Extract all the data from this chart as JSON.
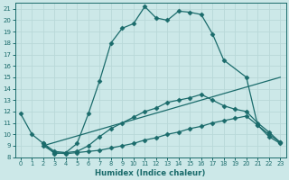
{
  "xlabel": "Humidex (Indice chaleur)",
  "xlim": [
    -0.5,
    23.5
  ],
  "ylim": [
    8,
    21.5
  ],
  "yticks": [
    8,
    9,
    10,
    11,
    12,
    13,
    14,
    15,
    16,
    17,
    18,
    19,
    20,
    21
  ],
  "xticks": [
    0,
    1,
    2,
    3,
    4,
    5,
    6,
    7,
    8,
    9,
    10,
    11,
    12,
    13,
    14,
    15,
    16,
    17,
    18,
    19,
    20,
    21,
    22,
    23
  ],
  "bg_color": "#cce8e8",
  "line_color": "#1a6b6b",
  "grid_color": "#b8d8d8",
  "curve1_x": [
    0,
    1,
    2,
    3,
    4,
    5,
    6,
    7,
    8,
    9,
    10,
    11,
    12,
    13,
    14,
    15,
    16,
    17,
    18,
    20,
    21,
    22,
    23
  ],
  "curve1_y": [
    11.8,
    10.0,
    9.2,
    8.3,
    8.4,
    9.2,
    11.8,
    14.7,
    18.0,
    19.3,
    19.7,
    21.2,
    20.2,
    20.0,
    20.8,
    20.7,
    20.5,
    18.8,
    16.5,
    15.0,
    10.8,
    10.0,
    9.3
  ],
  "curve2_x": [
    2,
    3,
    4,
    5,
    6,
    7,
    8,
    9,
    10,
    11,
    12,
    13,
    14,
    15,
    16,
    17,
    18,
    19,
    20,
    21,
    22,
    23
  ],
  "curve2_y": [
    9.2,
    8.5,
    8.4,
    8.5,
    9.0,
    9.8,
    10.5,
    11.0,
    11.5,
    12.0,
    12.3,
    12.8,
    13.0,
    13.2,
    13.5,
    13.0,
    12.5,
    12.2,
    12.0,
    11.0,
    10.2,
    9.3
  ],
  "curve3_x": [
    2,
    3,
    4,
    5,
    6,
    7,
    8,
    9,
    10,
    11,
    12,
    13,
    14,
    15,
    16,
    17,
    18,
    19,
    20,
    21,
    22,
    23
  ],
  "curve3_y": [
    9.0,
    8.4,
    8.3,
    8.4,
    8.5,
    8.6,
    8.8,
    9.0,
    9.2,
    9.5,
    9.7,
    10.0,
    10.2,
    10.5,
    10.7,
    11.0,
    11.2,
    11.4,
    11.6,
    10.8,
    9.8,
    9.2
  ],
  "curve4_x": [
    2,
    23
  ],
  "curve4_y": [
    9.0,
    15.0
  ],
  "marker": "D",
  "markersize": 2.5
}
